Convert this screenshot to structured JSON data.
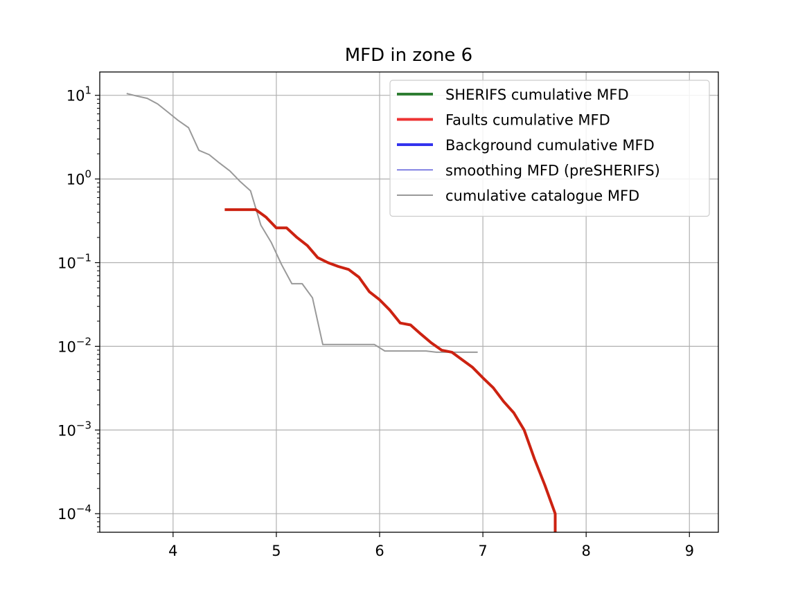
{
  "chart_data": {
    "type": "line",
    "title": "MFD in zone 6",
    "xlabel": "",
    "ylabel": "",
    "xlim": [
      3.29,
      9.28
    ],
    "ylim": [
      6e-05,
      19
    ],
    "yscale": "log",
    "grid": true,
    "legend_position": "top-right",
    "x_ticks": [
      4,
      5,
      6,
      7,
      8,
      9
    ],
    "x_tick_labels": [
      "4",
      "5",
      "6",
      "7",
      "8",
      "9"
    ],
    "y_ticks": [
      {
        "value": 10,
        "base": "10",
        "exp": "1"
      },
      {
        "value": 1,
        "base": "10",
        "exp": "0"
      },
      {
        "value": 0.1,
        "base": "10",
        "exp": "−1"
      },
      {
        "value": 0.01,
        "base": "10",
        "exp": "−2"
      },
      {
        "value": 0.001,
        "base": "10",
        "exp": "−3"
      },
      {
        "value": 0.0001,
        "base": "10",
        "exp": "−4"
      }
    ],
    "series": [
      {
        "name": "SHERIFS cumulative MFD",
        "color": "#2e7d32",
        "legend_style": "thick",
        "x": [],
        "y": []
      },
      {
        "name": "Faults cumulative MFD",
        "color": "#ee3333",
        "legend_style": "thick",
        "x": [],
        "y": []
      },
      {
        "name": "Background cumulative MFD",
        "color": "#3333ee",
        "legend_style": "thick",
        "x": [],
        "y": []
      },
      {
        "name": "smoothing MFD (preSHERIFS)",
        "color": "#1a1acc",
        "legend_style": "thin",
        "x": [],
        "y": []
      },
      {
        "name": "cumulative catalogue MFD",
        "color": "#999999",
        "legend_style": "medium",
        "x": [
          3.55,
          3.65,
          3.75,
          3.85,
          3.95,
          4.05,
          4.15,
          4.25,
          4.35,
          4.45,
          4.55,
          4.65,
          4.75,
          4.85,
          4.95,
          5.05,
          5.15,
          5.25,
          5.35,
          5.45,
          5.55,
          5.65,
          5.75,
          5.85,
          5.95,
          6.05,
          6.15,
          6.25,
          6.35,
          6.45,
          6.55,
          6.65,
          6.75,
          6.85,
          6.95
        ],
        "y": [
          10.5,
          9.8,
          9.2,
          7.9,
          6.3,
          5.0,
          4.1,
          2.2,
          1.95,
          1.55,
          1.25,
          0.93,
          0.72,
          0.28,
          0.175,
          0.095,
          0.056,
          0.056,
          0.038,
          0.0105,
          0.0105,
          0.0105,
          0.0105,
          0.0105,
          0.0105,
          0.0088,
          0.0088,
          0.0088,
          0.0088,
          0.0088,
          0.0085,
          0.0085,
          0.0085,
          0.0085,
          0.0085
        ]
      },
      {
        "name": "",
        "color": "#cc2211",
        "legend_style": "none",
        "x": [
          4.5,
          4.6,
          4.7,
          4.8,
          4.9,
          5.0,
          5.1,
          5.2,
          5.3,
          5.4,
          5.5,
          5.6,
          5.7,
          5.8,
          5.9,
          6.0,
          6.1,
          6.2,
          6.3,
          6.4,
          6.5,
          6.6,
          6.7,
          6.8,
          6.9,
          7.0,
          7.1,
          7.2,
          7.3,
          7.4,
          7.5,
          7.6,
          7.7,
          7.7
        ],
        "y": [
          0.43,
          0.43,
          0.43,
          0.43,
          0.35,
          0.26,
          0.26,
          0.2,
          0.16,
          0.115,
          0.1,
          0.09,
          0.083,
          0.067,
          0.045,
          0.036,
          0.027,
          0.019,
          0.018,
          0.014,
          0.011,
          0.009,
          0.0085,
          0.0069,
          0.0056,
          0.0042,
          0.0032,
          0.0022,
          0.0016,
          0.001,
          0.00045,
          0.00022,
          0.0001,
          6e-05
        ]
      }
    ]
  }
}
